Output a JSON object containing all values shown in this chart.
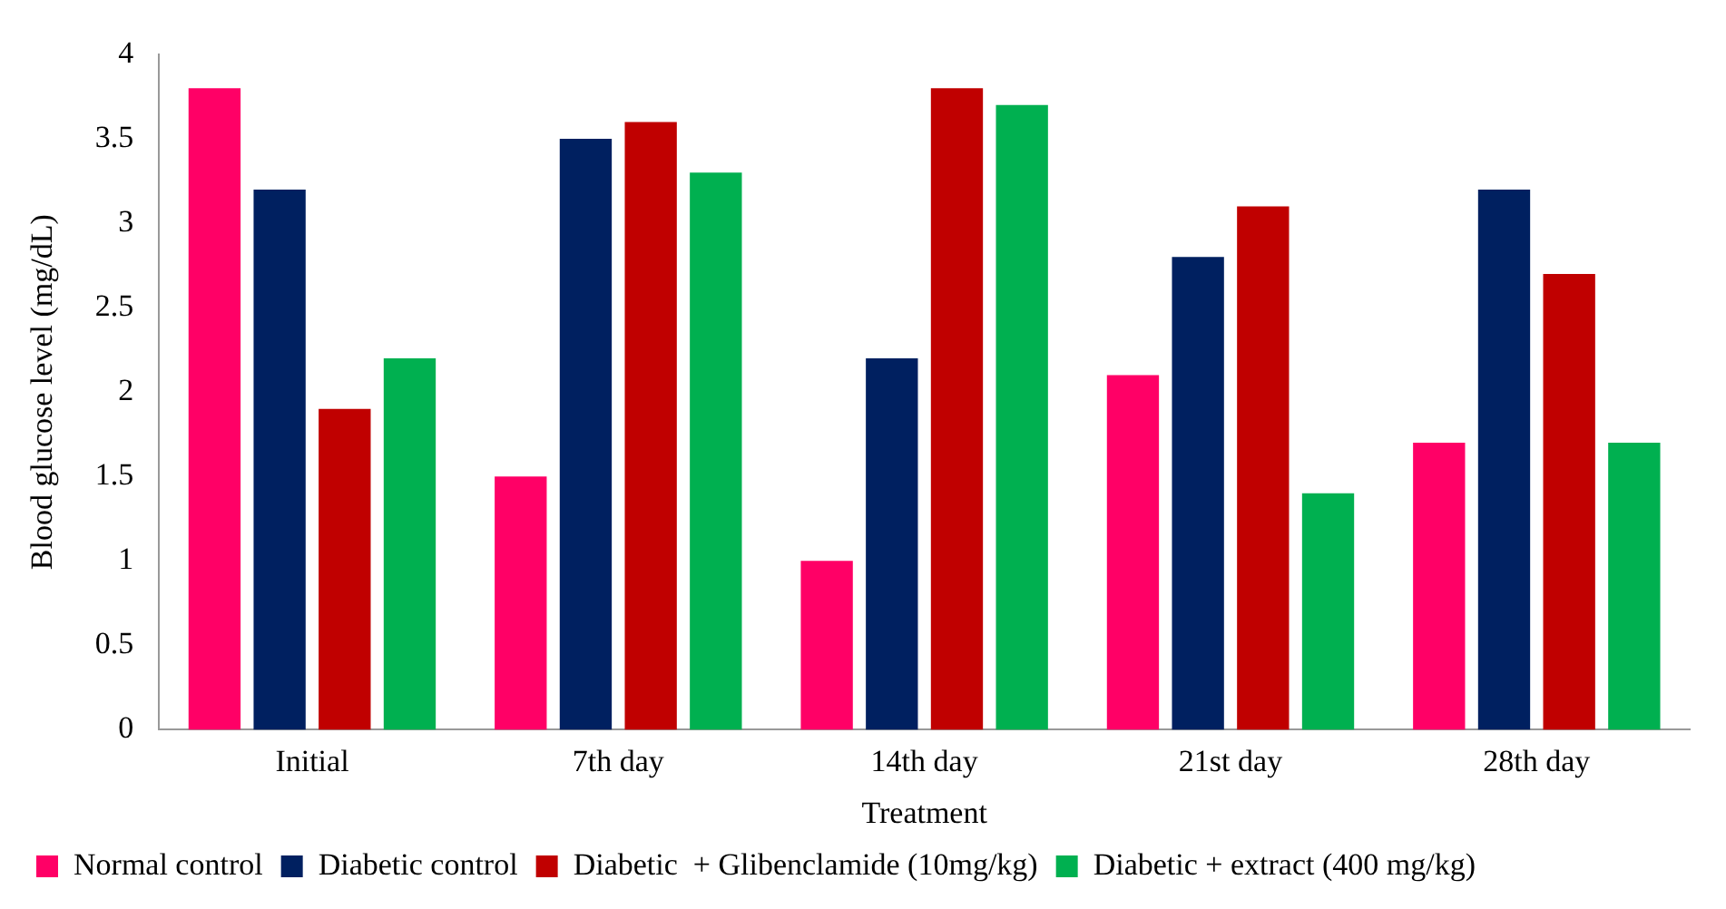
{
  "chart_data": {
    "type": "bar",
    "xlabel": "Treatment",
    "ylabel": "Blood glucose level (mg/dL)",
    "categories": [
      "Initial",
      "7th day",
      "14th day",
      "21st day",
      "28th day"
    ],
    "series": [
      {
        "name": "Normal control",
        "color": "#ff0066",
        "values": [
          3.8,
          1.5,
          1.0,
          2.1,
          1.7
        ]
      },
      {
        "name": "Diabetic control",
        "color": "#002060",
        "values": [
          3.2,
          3.5,
          2.2,
          2.8,
          3.2
        ]
      },
      {
        "name": "Diabetic  + Glibenclamide (10mg/kg)",
        "color": "#c00000",
        "values": [
          1.9,
          3.6,
          3.8,
          3.1,
          2.7
        ]
      },
      {
        "name": "Diabetic + extract (400 mg/kg)",
        "color": "#00b050",
        "values": [
          2.2,
          3.3,
          3.7,
          1.4,
          1.7
        ]
      }
    ],
    "ylim": [
      0,
      4
    ],
    "yticks": [
      0,
      0.5,
      1,
      1.5,
      2,
      2.5,
      3,
      3.5,
      4
    ],
    "grid": false,
    "legend": "bottom"
  }
}
